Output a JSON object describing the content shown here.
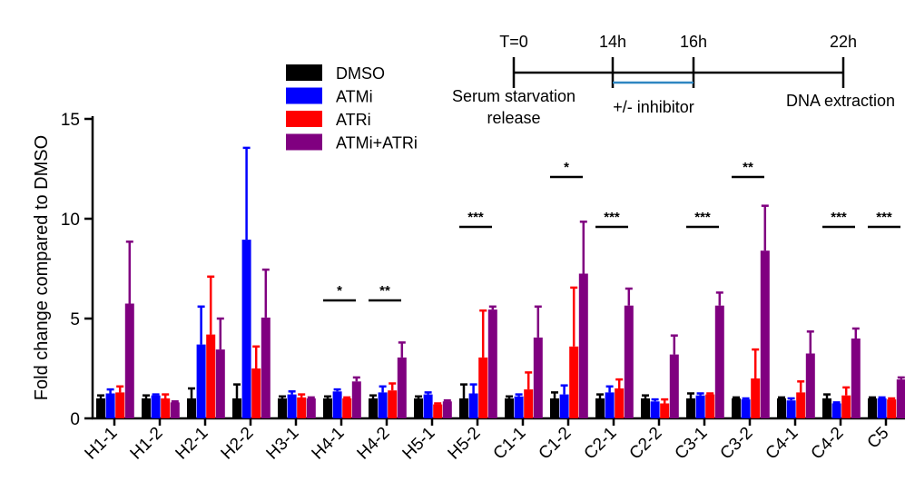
{
  "chart_data": {
    "type": "bar",
    "ylabel": "Fold change compared to DMSO",
    "ylim": [
      0,
      15
    ],
    "yticks": [
      "0",
      "5",
      "10",
      "15"
    ],
    "categories": [
      "H1-1",
      "H1-2",
      "H2-1",
      "H2-2",
      "H3-1",
      "H4-1",
      "H4-2",
      "H5-1",
      "H5-2",
      "C1-1",
      "C1-2",
      "C2-1",
      "C2-2",
      "C3-1",
      "C3-2",
      "C4-1",
      "C4-2",
      "C5"
    ],
    "series": [
      {
        "name": "DMSO",
        "color": "#000000",
        "values": [
          1.0,
          1.0,
          1.0,
          1.0,
          1.0,
          1.0,
          1.0,
          1.0,
          1.0,
          1.0,
          1.0,
          1.0,
          1.0,
          1.0,
          1.0,
          1.0,
          1.0,
          1.0
        ],
        "errors": [
          0.15,
          0.15,
          0.5,
          0.7,
          0.1,
          0.1,
          0.15,
          0.1,
          0.7,
          0.1,
          0.3,
          0.2,
          0.15,
          0.25,
          0.05,
          0.05,
          0.2,
          0.05
        ]
      },
      {
        "name": "ATMi",
        "color": "#0000ff",
        "values": [
          1.25,
          1.15,
          3.7,
          8.95,
          1.2,
          1.35,
          1.3,
          1.2,
          1.25,
          1.1,
          1.2,
          1.3,
          0.85,
          1.15,
          0.95,
          0.9,
          0.75,
          1.0
        ],
        "errors": [
          0.2,
          0.05,
          1.9,
          4.6,
          0.15,
          0.1,
          0.3,
          0.1,
          0.45,
          0.1,
          0.45,
          0.3,
          0.1,
          0.1,
          0.05,
          0.1,
          0.05,
          0.05
        ]
      },
      {
        "name": "ATRi",
        "color": "#ff0000",
        "values": [
          1.3,
          1.0,
          4.2,
          2.5,
          1.05,
          1.0,
          1.4,
          0.7,
          3.05,
          1.45,
          3.6,
          1.5,
          0.75,
          1.2,
          2.0,
          1.3,
          1.15,
          0.95
        ],
        "errors": [
          0.3,
          0.2,
          2.9,
          1.1,
          0.15,
          0.05,
          0.35,
          0.05,
          2.35,
          0.85,
          2.95,
          0.45,
          0.2,
          0.05,
          1.45,
          0.55,
          0.4,
          0.05
        ]
      },
      {
        "name": "ATMi+ATRi",
        "color": "#800080",
        "values": [
          5.75,
          0.8,
          3.45,
          5.05,
          1.0,
          1.85,
          3.05,
          0.85,
          5.45,
          4.05,
          7.25,
          5.65,
          3.2,
          5.65,
          8.4,
          3.25,
          4.0,
          1.95
        ],
        "errors": [
          3.1,
          0.05,
          1.55,
          2.4,
          0.05,
          0.2,
          0.75,
          0.05,
          0.15,
          1.55,
          2.6,
          0.85,
          0.95,
          0.65,
          2.25,
          1.1,
          0.5,
          0.1
        ]
      }
    ],
    "significance": [
      {
        "category": "H4-1",
        "label": "*"
      },
      {
        "category": "H4-2",
        "label": "**"
      },
      {
        "category": "H5-2",
        "label": "***"
      },
      {
        "category": "C1-2",
        "label": "*"
      },
      {
        "category": "C2-1",
        "label": "***"
      },
      {
        "category": "C3-1",
        "label": "***"
      },
      {
        "category": "C3-2",
        "label": "**"
      },
      {
        "category": "C4-2",
        "label": "***"
      },
      {
        "category": "C5",
        "label": "***"
      }
    ],
    "legend": [
      "DMSO",
      "ATMi",
      "ATRi",
      "ATMi+ATRi"
    ],
    "grid": false
  },
  "timeline": {
    "points": [
      {
        "time": "T=0",
        "caption": [
          "Serum starvation",
          "release"
        ]
      },
      {
        "time": "14h",
        "caption": []
      },
      {
        "time": "16h",
        "caption": []
      },
      {
        "time": "22h",
        "caption": [
          "DNA extraction"
        ]
      }
    ],
    "interval_label": "+/- inhibitor",
    "interval_color": "#2e86c1"
  }
}
